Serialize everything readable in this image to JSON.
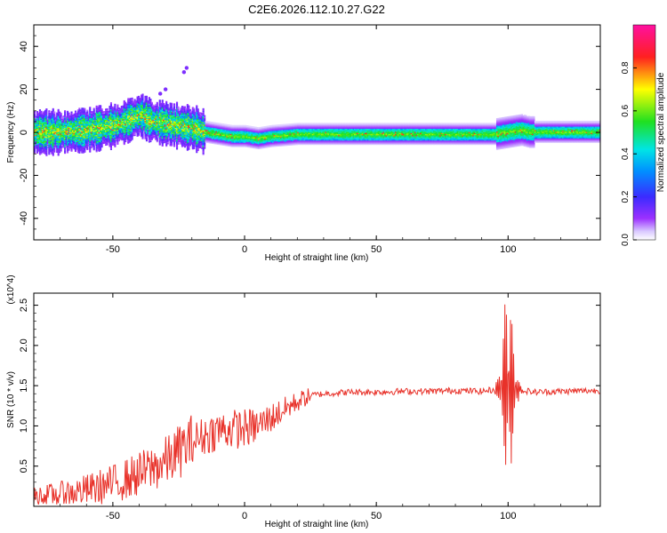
{
  "title": "C2E6.2026.112.10.27.G22",
  "chart_data": [
    {
      "type": "heatmap",
      "xlabel": "Height of straight line (km)",
      "ylabel": "Frequency (Hz)",
      "xlim": [
        -80,
        135
      ],
      "ylim": [
        -50,
        50
      ],
      "xticks": [
        -50,
        0,
        50,
        100
      ],
      "yticks": [
        -40,
        -20,
        0,
        20,
        40
      ],
      "colorbar": {
        "label": "Normalized spectral amplitude",
        "range": [
          0,
          1
        ],
        "ticks": [
          0.0,
          0.2,
          0.4,
          0.6,
          0.8
        ],
        "tick_labels": [
          "0.0",
          "0.2",
          "0.4",
          "0.6",
          "0.8"
        ],
        "colormap": "rainbow (purple-blue-cyan-green-yellow-red-magenta)"
      },
      "ridge": {
        "x": [
          -80,
          -70,
          -60,
          -50,
          -45,
          -40,
          -35,
          -30,
          -25,
          -20,
          -15,
          -10,
          -5,
          0,
          5,
          10,
          20,
          40,
          60,
          80,
          95,
          100,
          105,
          108,
          120,
          135
        ],
        "center_hz": [
          0,
          0,
          1,
          3,
          5,
          8,
          5,
          4,
          3,
          2,
          0,
          -1,
          -2,
          -2,
          -3,
          -2,
          -1,
          -1,
          -1,
          -1,
          -1,
          0,
          1,
          0,
          0,
          0
        ]
      },
      "outliers": [
        {
          "x": -22,
          "y": 30
        },
        {
          "x": -23,
          "y": 28
        },
        {
          "x": -30,
          "y": 20
        },
        {
          "x": -32,
          "y": 18
        }
      ]
    },
    {
      "type": "line",
      "xlabel": "Height of straight line (km)",
      "ylabel": "SNR (10 * v/v)",
      "y_multiplier_label": "(x10^4)",
      "xlim": [
        -80,
        135
      ],
      "ylim": [
        0,
        2.65
      ],
      "xticks": [
        -50,
        0,
        50,
        100
      ],
      "yticks": [
        0.5,
        1.0,
        1.5,
        2.0,
        2.5
      ],
      "ytick_labels": [
        "0.5",
        "1.0",
        "1.5",
        "2.0",
        "2.5"
      ],
      "color": "#e8322a",
      "series": [
        {
          "x": [
            -80,
            -70,
            -60,
            -50,
            -40,
            -30,
            -25,
            -20,
            -15,
            -10,
            -5,
            0,
            5,
            10,
            15,
            20,
            25,
            30,
            40,
            50,
            60,
            70,
            80,
            90,
            95,
            98,
            100,
            102,
            104,
            106,
            110,
            120,
            135
          ],
          "values": [
            0.12,
            0.15,
            0.2,
            0.28,
            0.4,
            0.55,
            0.68,
            0.8,
            0.88,
            0.95,
            0.96,
            0.97,
            1.0,
            1.1,
            1.2,
            1.3,
            1.38,
            1.4,
            1.42,
            1.42,
            1.43,
            1.43,
            1.44,
            1.43,
            1.45,
            1.5,
            1.5,
            1.5,
            1.45,
            1.44,
            1.42,
            1.43,
            1.44
          ]
        }
      ]
    }
  ]
}
